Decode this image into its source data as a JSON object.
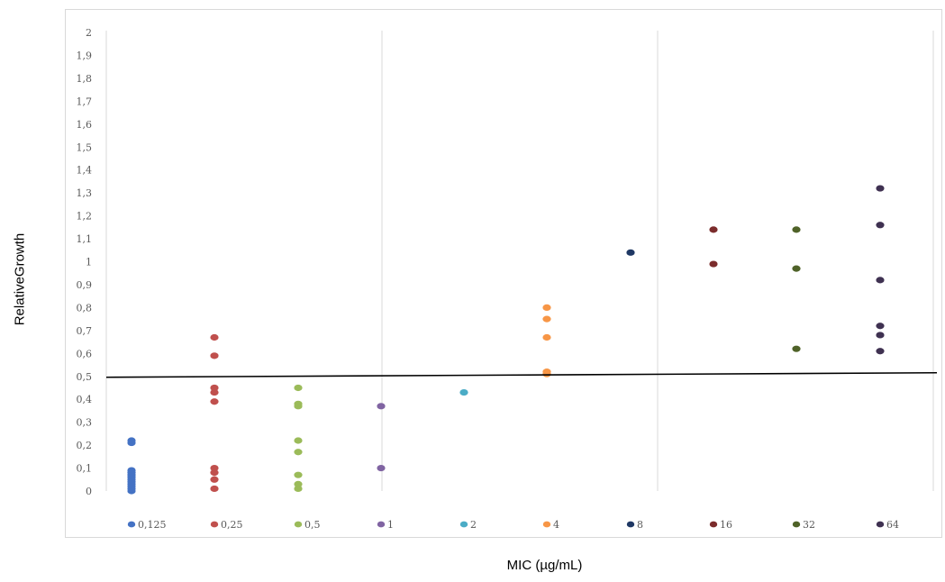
{
  "chart_data": {
    "type": "scatter",
    "title": "",
    "xlabel": "MIC (µg/mL)",
    "ylabel": "RelativeGrowth",
    "ylim": [
      0,
      2
    ],
    "y_ticks": [
      "0",
      "0,1",
      "0,2",
      "0,3",
      "0,4",
      "0,5",
      "0,6",
      "0,7",
      "0,8",
      "0,9",
      "1",
      "1,1",
      "1,2",
      "1,3",
      "1,4",
      "1,5",
      "1,6",
      "1,7",
      "1,8",
      "1,9",
      "2"
    ],
    "grid": "vertical",
    "legend_position": "bottom",
    "threshold_line": 0.5,
    "series": [
      {
        "name": "0,125",
        "color": "#4472c4",
        "values": [
          0.22,
          0.21,
          0.09,
          0.08,
          0.07,
          0.06,
          0.05,
          0.04,
          0.03,
          0.02,
          0.01,
          0.0
        ]
      },
      {
        "name": "0,25",
        "color": "#c0504d",
        "values": [
          0.67,
          0.59,
          0.45,
          0.43,
          0.39,
          0.1,
          0.08,
          0.05,
          0.01
        ]
      },
      {
        "name": "0,5",
        "color": "#9bbb59",
        "values": [
          0.45,
          0.38,
          0.37,
          0.22,
          0.17,
          0.07,
          0.03,
          0.01
        ]
      },
      {
        "name": "1",
        "color": "#8064a2",
        "values": [
          0.37,
          0.1
        ]
      },
      {
        "name": "2",
        "color": "#4bacc6",
        "values": [
          0.43
        ]
      },
      {
        "name": "4",
        "color": "#f79646",
        "values": [
          0.8,
          0.75,
          0.67,
          0.52,
          0.51
        ]
      },
      {
        "name": "8",
        "color": "#1f3864",
        "values": [
          1.04
        ]
      },
      {
        "name": "16",
        "color": "#7b2c2c",
        "values": [
          1.14,
          0.99
        ]
      },
      {
        "name": "32",
        "color": "#4f6228",
        "values": [
          1.14,
          0.97,
          0.62
        ]
      },
      {
        "name": "64",
        "color": "#3f3151",
        "values": [
          1.32,
          1.16,
          0.92,
          0.72,
          0.68,
          0.61
        ]
      }
    ]
  }
}
